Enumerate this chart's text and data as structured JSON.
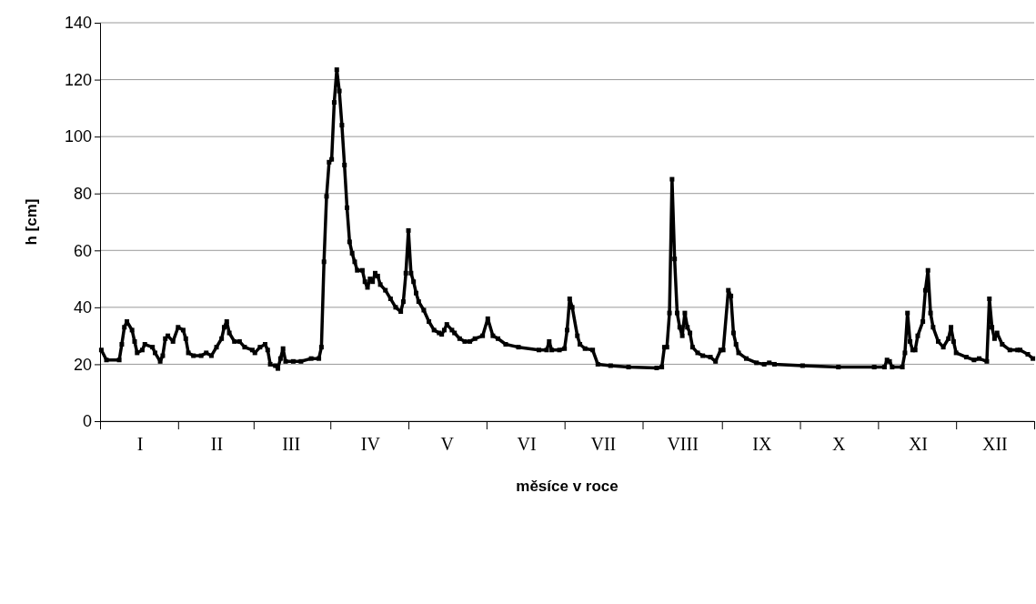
{
  "chart_data": {
    "type": "line",
    "xlabel": "měsíce v roce",
    "ylabel": "h [cm]",
    "ylim": [
      0,
      140
    ],
    "yticks": [
      0,
      20,
      40,
      60,
      80,
      100,
      120,
      140
    ],
    "grid": "y",
    "marker": "square",
    "line_style": "solid",
    "categories": [
      null,
      null,
      null,
      null,
      null,
      null,
      null,
      null,
      null,
      null,
      null,
      null,
      null,
      null,
      null,
      "I",
      null,
      null,
      null,
      null,
      null,
      null,
      null,
      null,
      null,
      null,
      null,
      null,
      null,
      null,
      null,
      null,
      null,
      null,
      null,
      null,
      null,
      null,
      null,
      null,
      null,
      null,
      null,
      null,
      null,
      "II",
      null,
      null,
      null,
      null,
      null,
      null,
      null,
      null,
      null,
      null,
      null,
      null,
      null,
      null,
      null,
      null,
      null,
      null,
      null,
      null,
      null,
      null,
      null,
      null,
      null,
      null,
      null,
      null,
      "III",
      null,
      null,
      null,
      null,
      null,
      null,
      null,
      null,
      null,
      null,
      null,
      null,
      null,
      null,
      null,
      null,
      null,
      null,
      null,
      null,
      null,
      null,
      null,
      null,
      null,
      null,
      null,
      null,
      null,
      null,
      "IV",
      null,
      null,
      null,
      null,
      null,
      null,
      null,
      null,
      null,
      null,
      null,
      null,
      null,
      null,
      null,
      null,
      null,
      null,
      null,
      null,
      null,
      null,
      null,
      null,
      null,
      null,
      null,
      null,
      null,
      "V",
      null,
      null,
      null,
      null,
      null,
      null,
      null,
      null,
      null,
      null,
      null,
      null,
      null,
      null,
      null,
      null,
      null,
      null,
      null,
      null,
      null,
      null,
      null,
      null,
      null,
      null,
      null,
      null,
      null,
      null,
      "VI",
      null,
      null,
      null,
      null,
      null,
      null,
      null,
      null,
      null,
      null,
      null,
      null,
      null,
      null,
      null,
      null,
      null,
      null,
      null,
      null,
      null,
      null,
      null,
      null,
      null,
      null,
      null,
      null,
      null,
      "VII",
      null,
      null,
      null,
      null,
      null,
      null,
      null,
      null,
      null,
      null,
      null,
      null,
      null,
      null,
      null,
      null,
      null,
      null,
      null,
      null,
      null,
      null,
      null,
      null,
      null,
      null,
      null,
      null,
      null,
      null,
      "VIII",
      null,
      null,
      null,
      null,
      null,
      null,
      null,
      null,
      null,
      null,
      null,
      null,
      null,
      null,
      null,
      null,
      null,
      null,
      null,
      null,
      null,
      null,
      null,
      null,
      null,
      null,
      null,
      null,
      null,
      null,
      "IX",
      null,
      null,
      null,
      null,
      null,
      null,
      null,
      null,
      null,
      null,
      null,
      null,
      null,
      null,
      null,
      null,
      null,
      null,
      null,
      null,
      null,
      null,
      null,
      null,
      null,
      null,
      null,
      null,
      null,
      "X",
      null,
      null,
      null,
      null,
      null,
      null,
      null,
      null,
      null,
      null,
      null,
      null,
      null,
      null,
      null,
      null,
      null,
      null,
      null,
      null,
      null,
      null,
      null,
      null,
      null,
      null,
      null,
      null,
      null,
      null,
      "XI",
      null,
      null,
      null,
      null,
      null,
      null,
      null,
      null,
      null,
      null,
      null,
      null,
      null,
      null,
      null,
      null,
      null,
      null,
      null,
      null,
      null,
      null,
      null,
      null,
      null,
      null,
      null,
      null,
      null,
      "XII",
      null,
      null,
      null,
      null,
      null,
      null,
      null,
      null,
      null,
      null,
      null,
      null,
      null,
      null,
      null
    ],
    "series": [
      {
        "color": "#000000",
        "values": [
          25,
          null,
          21.5,
          null,
          null,
          null,
          null,
          21.5,
          27,
          33,
          35,
          null,
          32,
          28,
          24,
          null,
          25,
          27,
          null,
          null,
          26,
          24,
          null,
          21,
          23,
          29,
          30,
          null,
          28,
          null,
          33,
          null,
          32,
          29,
          24,
          null,
          23,
          null,
          null,
          23,
          null,
          24,
          null,
          23,
          null,
          26,
          null,
          29,
          33,
          35,
          31,
          null,
          28,
          null,
          28,
          null,
          26,
          null,
          null,
          25,
          24,
          null,
          26,
          null,
          27,
          25,
          20,
          null,
          19.5,
          18.5,
          22,
          25.5,
          21,
          null,
          null,
          21,
          null,
          null,
          21,
          null,
          null,
          null,
          22,
          null,
          null,
          22,
          26,
          56,
          79,
          91,
          92,
          112,
          123.5,
          116,
          104,
          90,
          75,
          63,
          59,
          56,
          53,
          null,
          53,
          49,
          47,
          50,
          49,
          52,
          51,
          48,
          null,
          46,
          null,
          43,
          null,
          40,
          null,
          38.5,
          42,
          52,
          67,
          52,
          49,
          45,
          42,
          null,
          39,
          null,
          35,
          null,
          32,
          null,
          31,
          30.5,
          32,
          34,
          null,
          32,
          31,
          null,
          29,
          null,
          28,
          null,
          28,
          null,
          29,
          null,
          null,
          30,
          null,
          36,
          null,
          30,
          null,
          29,
          null,
          null,
          27,
          null,
          null,
          null,
          null,
          26,
          null,
          null,
          null,
          null,
          null,
          null,
          null,
          25,
          null,
          null,
          25,
          28,
          25,
          null,
          null,
          25,
          null,
          25.5,
          32,
          43,
          40,
          null,
          30,
          27,
          null,
          25.5,
          null,
          null,
          25,
          null,
          20,
          null,
          null,
          null,
          null,
          19.5,
          null,
          null,
          null,
          null,
          null,
          null,
          19,
          null,
          null,
          null,
          null,
          null,
          null,
          null,
          null,
          null,
          null,
          18.7,
          null,
          19,
          26,
          26,
          38,
          85,
          57,
          38,
          33,
          30,
          38,
          33,
          31,
          26,
          null,
          24,
          null,
          23,
          null,
          null,
          22.5,
          null,
          21,
          null,
          25,
          25,
          null,
          46,
          44,
          31,
          27,
          24,
          null,
          null,
          22,
          null,
          null,
          null,
          20.5,
          null,
          null,
          20,
          null,
          20.5,
          null,
          20,
          null,
          null,
          null,
          null,
          null,
          null,
          null,
          null,
          null,
          null,
          19.5,
          null,
          null,
          null,
          null,
          null,
          null,
          null,
          null,
          null,
          null,
          null,
          null,
          null,
          19,
          null,
          null,
          null,
          null,
          null,
          null,
          null,
          null,
          null,
          null,
          null,
          null,
          null,
          19,
          null,
          null,
          null,
          19,
          21.5,
          21,
          19,
          null,
          null,
          null,
          19,
          24,
          38,
          28,
          25,
          25,
          30,
          null,
          35,
          46,
          53,
          38,
          33,
          null,
          28,
          null,
          26,
          null,
          29,
          33,
          28,
          24,
          null,
          null,
          null,
          22.5,
          null,
          null,
          21.5,
          null,
          22,
          null,
          null,
          21,
          43,
          33,
          29,
          31,
          null,
          27,
          null,
          null,
          25,
          null,
          null,
          25,
          25,
          null,
          null,
          23.5,
          null,
          22
        ]
      }
    ]
  }
}
